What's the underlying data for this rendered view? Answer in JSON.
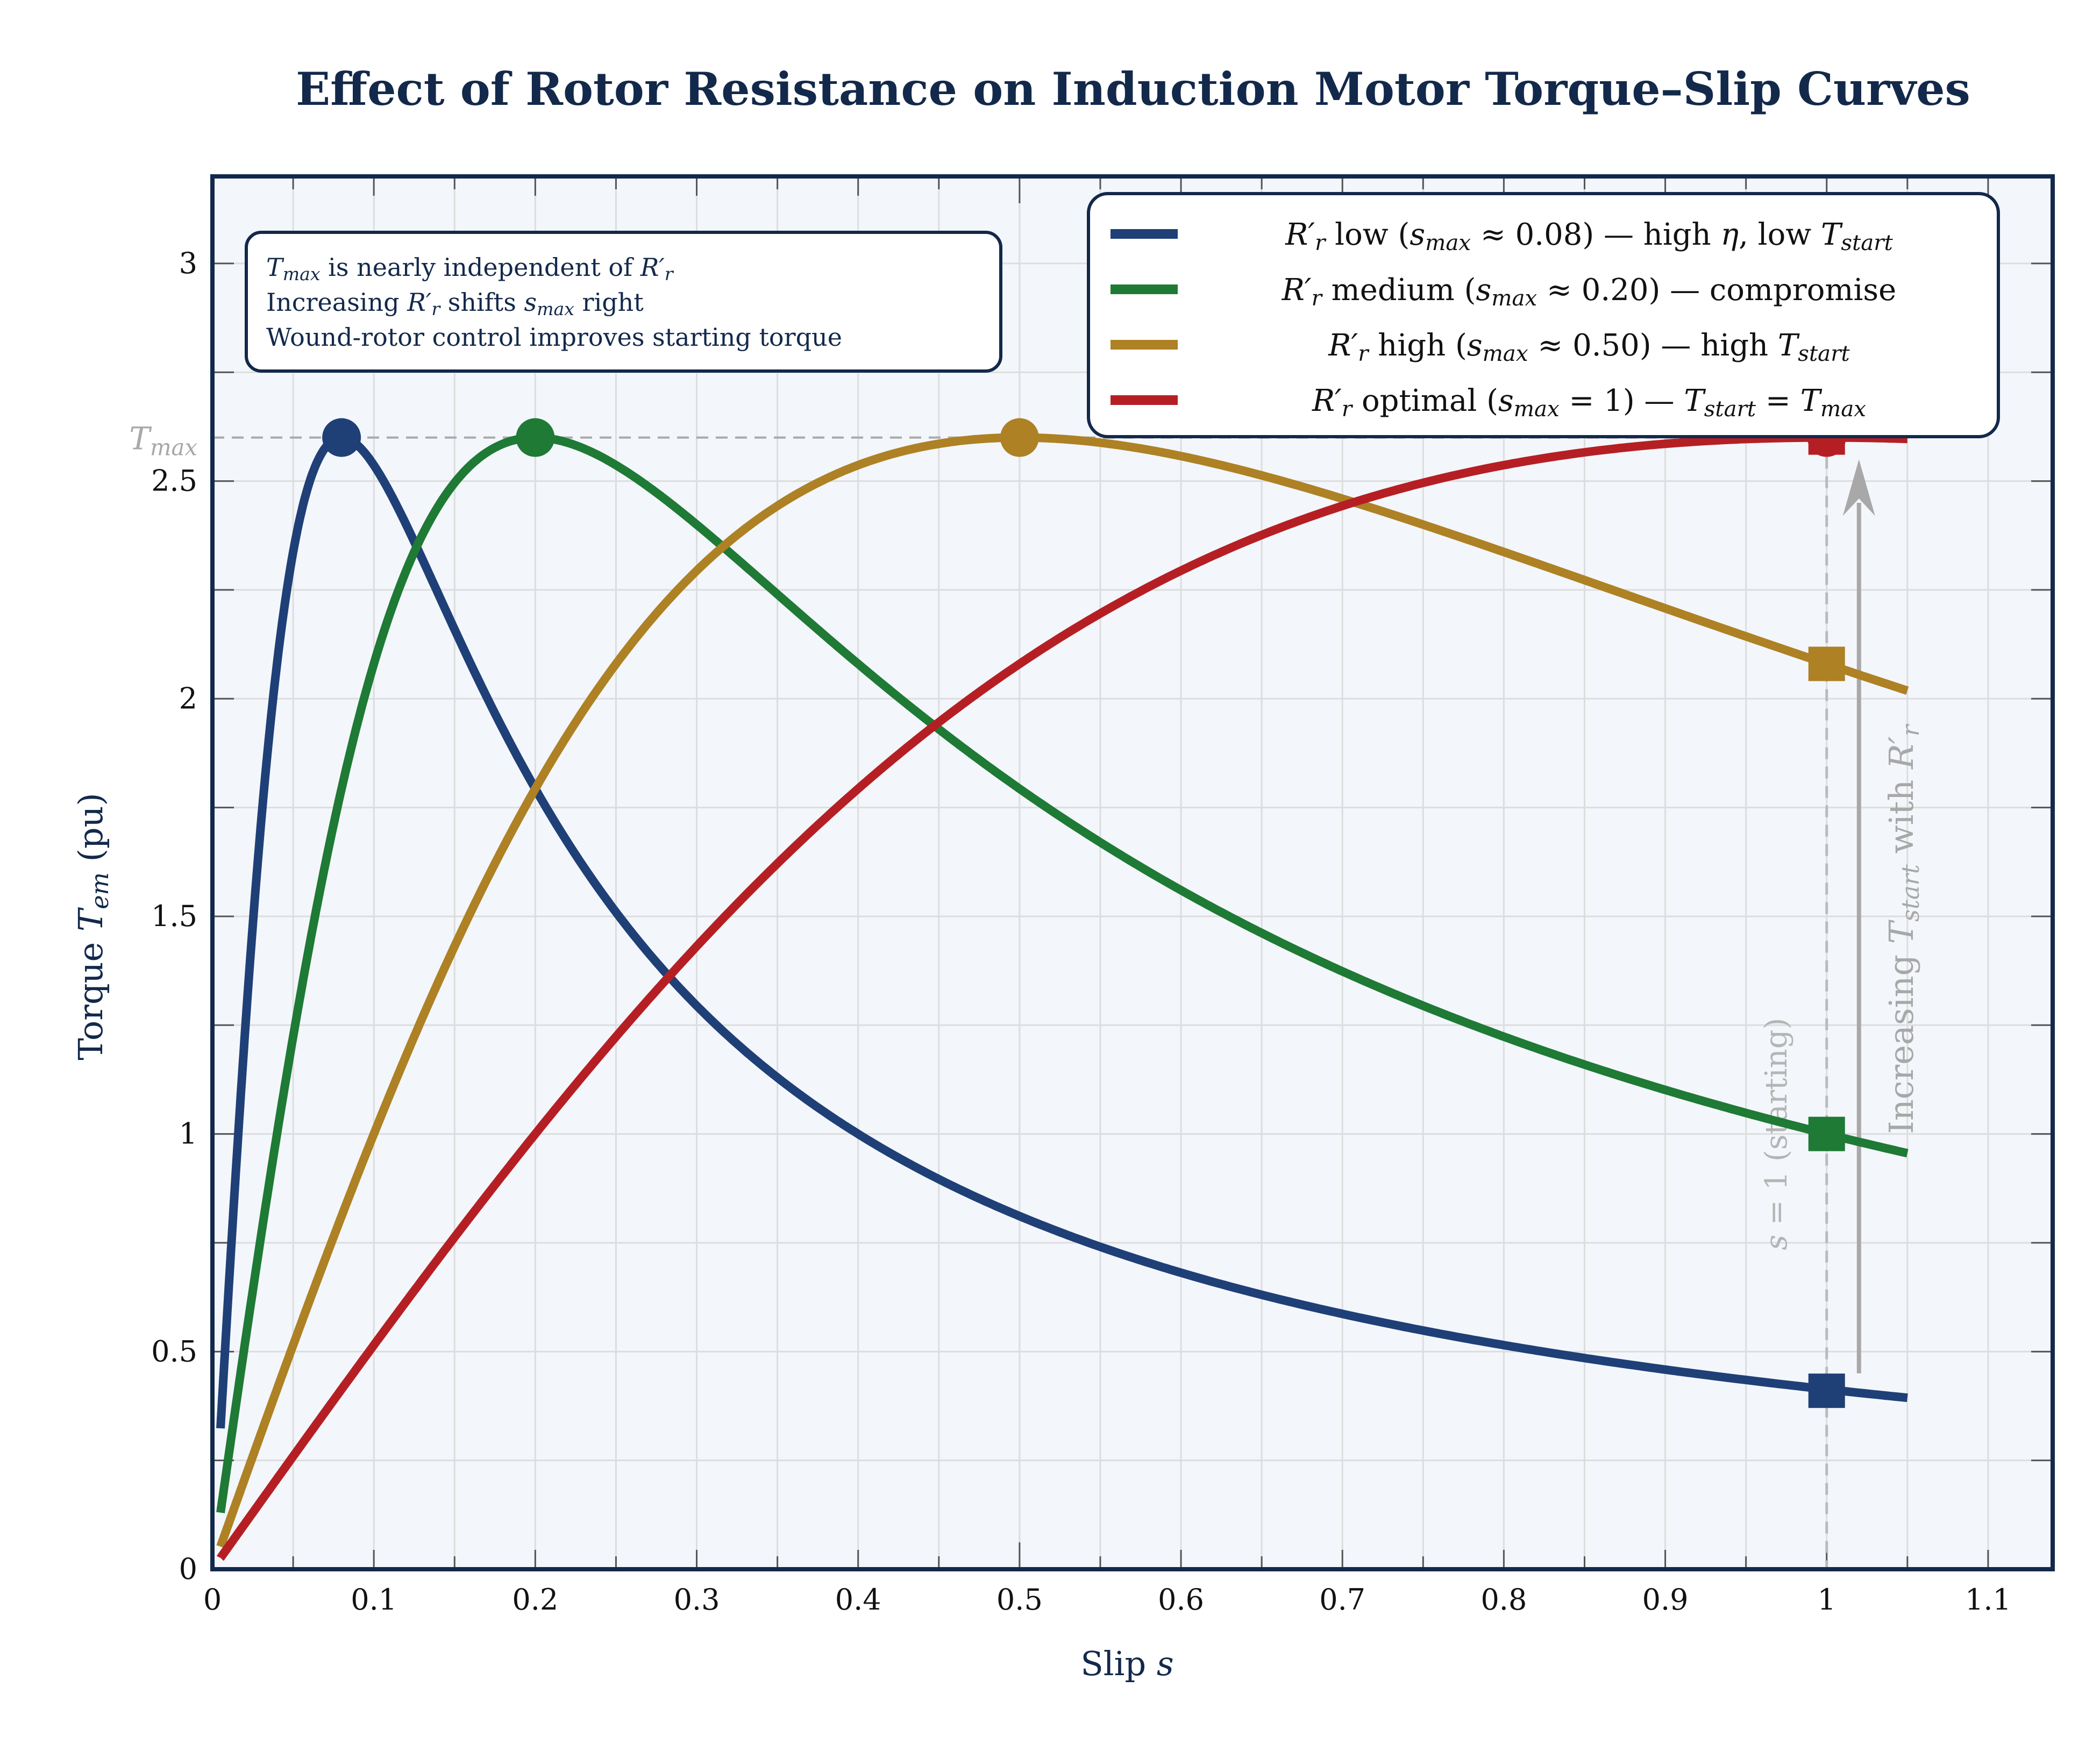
{
  "chart_data": {
    "type": "line",
    "title": "Effect of Rotor Resistance on Induction Motor Torque–Slip Curves",
    "xlabel": [
      [
        "Slip ",
        ""
      ],
      [
        "s",
        "i"
      ]
    ],
    "ylabel": [
      [
        "Torque ",
        ""
      ],
      [
        "T",
        "i"
      ],
      [
        "em",
        "sub"
      ],
      [
        " (pu)",
        ""
      ]
    ],
    "xlim": [
      0,
      1.14
    ],
    "ylim": [
      0,
      3.2
    ],
    "grid": true,
    "legend_position": "top-right",
    "x_ticks": [
      "0",
      "0.1",
      "0.2",
      "0.3",
      "0.4",
      "0.5",
      "0.6",
      "0.7",
      "0.8",
      "0.9",
      "1",
      "1.1"
    ],
    "x_tick_values": [
      0,
      0.1,
      0.2,
      0.3,
      0.4,
      0.5,
      0.6,
      0.7,
      0.8,
      0.9,
      1,
      1.1
    ],
    "y_ticks": [
      "0",
      "0.5",
      "1",
      "1.5",
      "2",
      "2.5",
      "3"
    ],
    "y_tick_values": [
      0,
      0.5,
      1,
      1.5,
      2,
      2.5,
      3
    ],
    "t_max": 2.6,
    "s_range": [
      0.005,
      1.05
    ],
    "t_max_label": [
      [
        "T",
        "i"
      ],
      [
        "max",
        "sub"
      ]
    ],
    "series": [
      {
        "color": "#1f3f77",
        "s_max": 0.08,
        "t_start": 0.41,
        "name": [
          [
            "R′",
            "i"
          ],
          [
            "r",
            "sub"
          ],
          [
            " low (",
            ""
          ],
          [
            "s",
            "i"
          ],
          [
            "max",
            "sub"
          ],
          [
            " ≈ 0.08) — high ",
            ""
          ],
          [
            "η",
            "i"
          ],
          [
            ", low ",
            ""
          ],
          [
            "T",
            "i"
          ],
          [
            "start",
            "sub"
          ]
        ]
      },
      {
        "color": "#1e7a34",
        "s_max": 0.2,
        "t_start": 1.0,
        "name": [
          [
            "R′",
            "i"
          ],
          [
            "r",
            "sub"
          ],
          [
            " medium (",
            ""
          ],
          [
            "s",
            "i"
          ],
          [
            "max",
            "sub"
          ],
          [
            " ≈ 0.20) — compromise",
            ""
          ]
        ]
      },
      {
        "color": "#ad8124",
        "s_max": 0.5,
        "t_start": 2.08,
        "name": [
          [
            "R′",
            "i"
          ],
          [
            "r",
            "sub"
          ],
          [
            " high (",
            ""
          ],
          [
            "s",
            "i"
          ],
          [
            "max",
            "sub"
          ],
          [
            " ≈ 0.50) — high ",
            ""
          ],
          [
            "T",
            "i"
          ],
          [
            "start",
            "sub"
          ]
        ]
      },
      {
        "color": "#b51f24",
        "s_max": 1.0,
        "t_start": 2.6,
        "name": [
          [
            "R′",
            "i"
          ],
          [
            "r",
            "sub"
          ],
          [
            " optimal (",
            ""
          ],
          [
            "s",
            "i"
          ],
          [
            "max",
            "sub"
          ],
          [
            " = 1) — ",
            ""
          ],
          [
            "T",
            "i"
          ],
          [
            "start",
            "sub"
          ],
          [
            " = ",
            ""
          ],
          [
            "T",
            "i"
          ],
          [
            "max",
            "sub"
          ]
        ]
      }
    ],
    "annotation_box": [
      [
        [
          "T",
          "i"
        ],
        [
          "max",
          "sub"
        ],
        [
          " is nearly independent of ",
          ""
        ],
        [
          "R′",
          "i"
        ],
        [
          "r",
          "sub"
        ]
      ],
      [
        [
          "Increasing ",
          ""
        ],
        [
          "R′",
          "i"
        ],
        [
          "r",
          "sub"
        ],
        [
          " shifts ",
          ""
        ],
        [
          "s",
          "i"
        ],
        [
          "max",
          "sub"
        ],
        [
          " right",
          ""
        ]
      ],
      [
        [
          "Wound-rotor control improves starting torque",
          ""
        ]
      ]
    ],
    "start_line_label": [
      [
        "s",
        "i"
      ],
      [
        " = 1 (starting)",
        ""
      ]
    ],
    "arrow_label": [
      [
        "Increasing ",
        ""
      ],
      [
        "T",
        "i"
      ],
      [
        "start",
        "sub"
      ],
      [
        " with ",
        ""
      ],
      [
        "R′",
        "i"
      ],
      [
        "r",
        "sub"
      ]
    ],
    "colors": {
      "frame": "#13294b",
      "plot_bg": "#f3f6fb",
      "grid": "#dddddd",
      "annotation": "#a8a8a8"
    }
  }
}
